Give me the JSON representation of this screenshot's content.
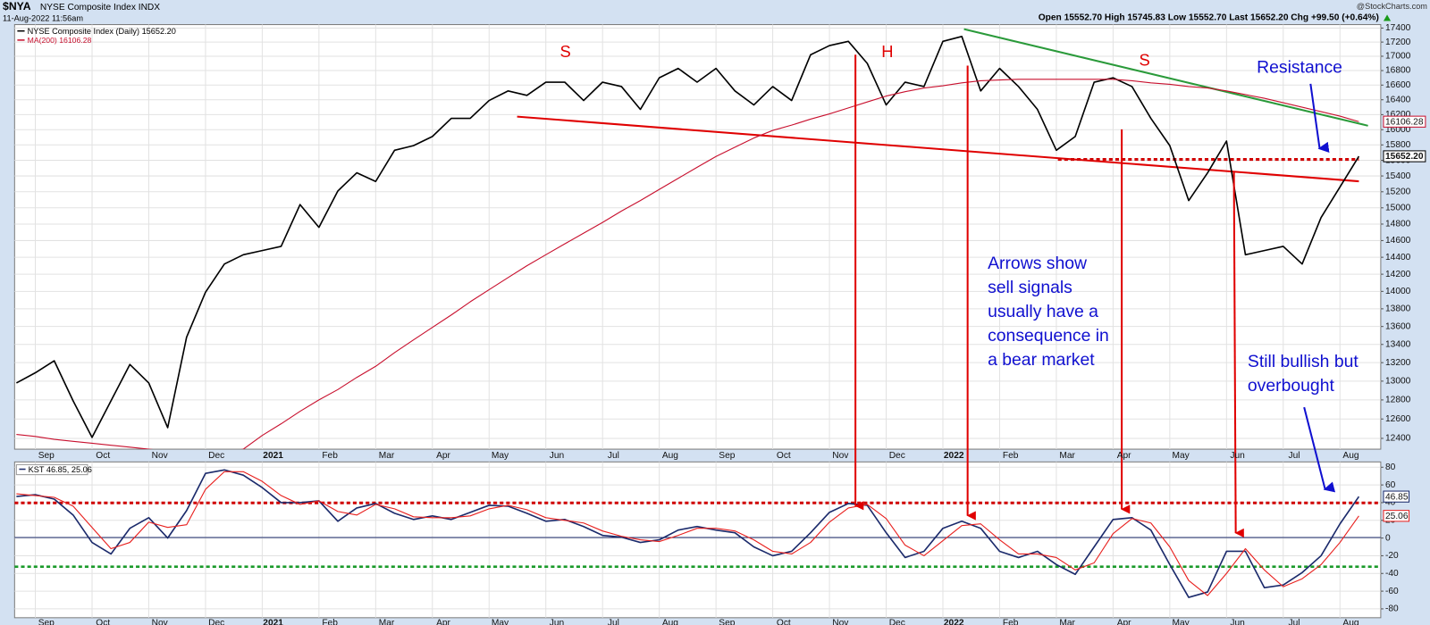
{
  "header": {
    "symbol": "$NYA",
    "name": "NYSE Composite Index INDX",
    "date": "11-Aug-2022 11:56am",
    "quote": "Open 15552.70 High 15745.83 Low 15552.70 Last 15652.20 Chg +99.50 (+0.64%)",
    "source": "@StockCharts.com"
  },
  "chart_data": [
    {
      "type": "line",
      "log_scale": true,
      "grid": true,
      "categories": [
        null,
        "Sep",
        null,
        null,
        "Oct",
        null,
        null,
        "Nov",
        null,
        null,
        "Dec",
        null,
        null,
        "2021",
        null,
        null,
        "Feb",
        null,
        null,
        "Mar",
        null,
        null,
        "Apr",
        null,
        null,
        "May",
        null,
        null,
        "Jun",
        null,
        null,
        "Jul",
        null,
        null,
        "Aug",
        null,
        null,
        "Sep",
        null,
        null,
        "Oct",
        null,
        null,
        "Nov",
        null,
        null,
        "Dec",
        null,
        null,
        "2022",
        null,
        null,
        "Feb",
        null,
        null,
        "Mar",
        null,
        null,
        "Apr",
        null,
        null,
        "May",
        null,
        null,
        "Jun",
        null,
        null,
        "Jul",
        null,
        null,
        "Aug",
        null
      ],
      "series": [
        {
          "name": "NYSE Composite Index (Daily)",
          "last_label": "15652.20",
          "color": "#000000",
          "values": [
            12980,
            13090,
            13220,
            12790,
            12410,
            12790,
            13180,
            12980,
            12510,
            13480,
            13990,
            14320,
            14430,
            14480,
            14530,
            15040,
            14760,
            15210,
            15440,
            15330,
            15730,
            15790,
            15910,
            16150,
            16150,
            16390,
            16520,
            16460,
            16640,
            16640,
            16390,
            16640,
            16580,
            16270,
            16700,
            16830,
            16640,
            16830,
            16520,
            16330,
            16580,
            16390,
            17020,
            17150,
            17210,
            16900,
            16330,
            16640,
            16580,
            17210,
            17280,
            16520,
            16830,
            16580,
            16270,
            15730,
            15910,
            16640,
            16700,
            16580,
            16150,
            15790,
            15090,
            15440,
            15850,
            14430,
            14480,
            14530,
            14320,
            14880,
            15260,
            15652.2
          ]
        },
        {
          "name": "MA(200)",
          "last_label": "16106.28",
          "color": "#c8102e",
          "values": [
            12440,
            12420,
            12390,
            12370,
            12350,
            12330,
            12310,
            12290,
            12270,
            12250,
            12240,
            12250,
            12290,
            12430,
            12550,
            12680,
            12800,
            12910,
            13040,
            13160,
            13310,
            13450,
            13590,
            13730,
            13880,
            14020,
            14160,
            14300,
            14430,
            14560,
            14690,
            14820,
            14960,
            15090,
            15230,
            15370,
            15510,
            15650,
            15770,
            15890,
            15990,
            16060,
            16140,
            16210,
            16290,
            16370,
            16450,
            16510,
            16560,
            16590,
            16630,
            16660,
            16670,
            16680,
            16680,
            16680,
            16680,
            16680,
            16680,
            16660,
            16630,
            16610,
            16580,
            16560,
            16520,
            16470,
            16420,
            16360,
            16300,
            16240,
            16180,
            16106.28
          ]
        }
      ],
      "ylim": [
        12290,
        17450
      ],
      "yticks": [
        12400,
        12600,
        12800,
        13000,
        13200,
        13400,
        13600,
        13800,
        14000,
        14200,
        14400,
        14600,
        14800,
        15000,
        15200,
        15400,
        15600,
        15800,
        16000,
        16200,
        16400,
        16600,
        16800,
        17000,
        17200,
        17400
      ],
      "annotations": [
        {
          "lines": [
            "S"
          ],
          "color": "#e00000"
        },
        {
          "lines": [
            "H"
          ],
          "color": "#e00000"
        },
        {
          "lines": [
            "S"
          ],
          "color": "#e00000"
        },
        {
          "lines": [
            "Resistance"
          ],
          "color": "#1010d0"
        },
        {
          "lines": [
            "Arrows show",
            "sell signals",
            "usually have a",
            "consequence in",
            "a bear market"
          ],
          "color": "#1010d0"
        },
        {
          "lines": [
            "Still bullish but",
            "overbought"
          ],
          "color": "#1010d0"
        }
      ]
    },
    {
      "type": "line",
      "log_scale": false,
      "grid": true,
      "legend_text": "KST 46.85, 25.06",
      "categories": [
        null,
        "Sep",
        null,
        null,
        "Oct",
        null,
        null,
        "Nov",
        null,
        null,
        "Dec",
        null,
        null,
        "2021",
        null,
        null,
        "Feb",
        null,
        null,
        "Mar",
        null,
        null,
        "Apr",
        null,
        null,
        "May",
        null,
        null,
        "Jun",
        null,
        null,
        "Jul",
        null,
        null,
        "Aug",
        null,
        null,
        "Sep",
        null,
        null,
        "Oct",
        null,
        null,
        "Nov",
        null,
        null,
        "Dec",
        null,
        null,
        "2022",
        null,
        null,
        "Feb",
        null,
        null,
        "Mar",
        null,
        null,
        "Apr",
        null,
        null,
        "May",
        null,
        null,
        "Jun",
        null,
        null,
        "Jul",
        null,
        null,
        "Aug",
        null
      ],
      "series": [
        {
          "last_label": "46.85",
          "color": "#1b2a6b",
          "values": [
            47,
            49,
            44,
            26,
            -5,
            -18,
            11,
            23,
            0,
            31,
            73,
            77,
            71,
            57,
            40,
            40,
            42,
            19,
            34,
            39,
            28,
            21,
            25,
            21,
            29,
            37,
            36,
            28,
            19,
            21,
            13,
            3,
            1,
            -5,
            -2,
            9,
            13,
            9,
            6,
            -10,
            -20,
            -15,
            6,
            29,
            39,
            37,
            6,
            -22,
            -15,
            11,
            19,
            11,
            -15,
            -22,
            -15,
            -30,
            -41,
            -10,
            21,
            23,
            9,
            -30,
            -67,
            -61,
            -15,
            -15,
            -56,
            -53,
            -39,
            -20,
            16,
            46.85
          ]
        },
        {
          "last_label": "25.06",
          "color": "#e8201e",
          "values": [
            50,
            48,
            46,
            36,
            12,
            -12,
            -5,
            18,
            12,
            15,
            55,
            75,
            75,
            64,
            48,
            38,
            42,
            30,
            26,
            38,
            33,
            24,
            23,
            23,
            25,
            33,
            37,
            32,
            23,
            20,
            17,
            8,
            2,
            -2,
            -4,
            3,
            11,
            11,
            8,
            -2,
            -15,
            -18,
            -5,
            18,
            34,
            38,
            22,
            -8,
            -20,
            -3,
            14,
            16,
            -2,
            -18,
            -18,
            -22,
            -36,
            -28,
            5,
            22,
            17,
            -10,
            -48,
            -65,
            -40,
            -12,
            -36,
            -55,
            -46,
            -30,
            -5,
            25.06
          ]
        }
      ],
      "ylim": [
        -90,
        86
      ],
      "yticks": [
        -80,
        -60,
        -40,
        -20,
        0,
        20,
        40,
        60,
        80
      ]
    }
  ]
}
